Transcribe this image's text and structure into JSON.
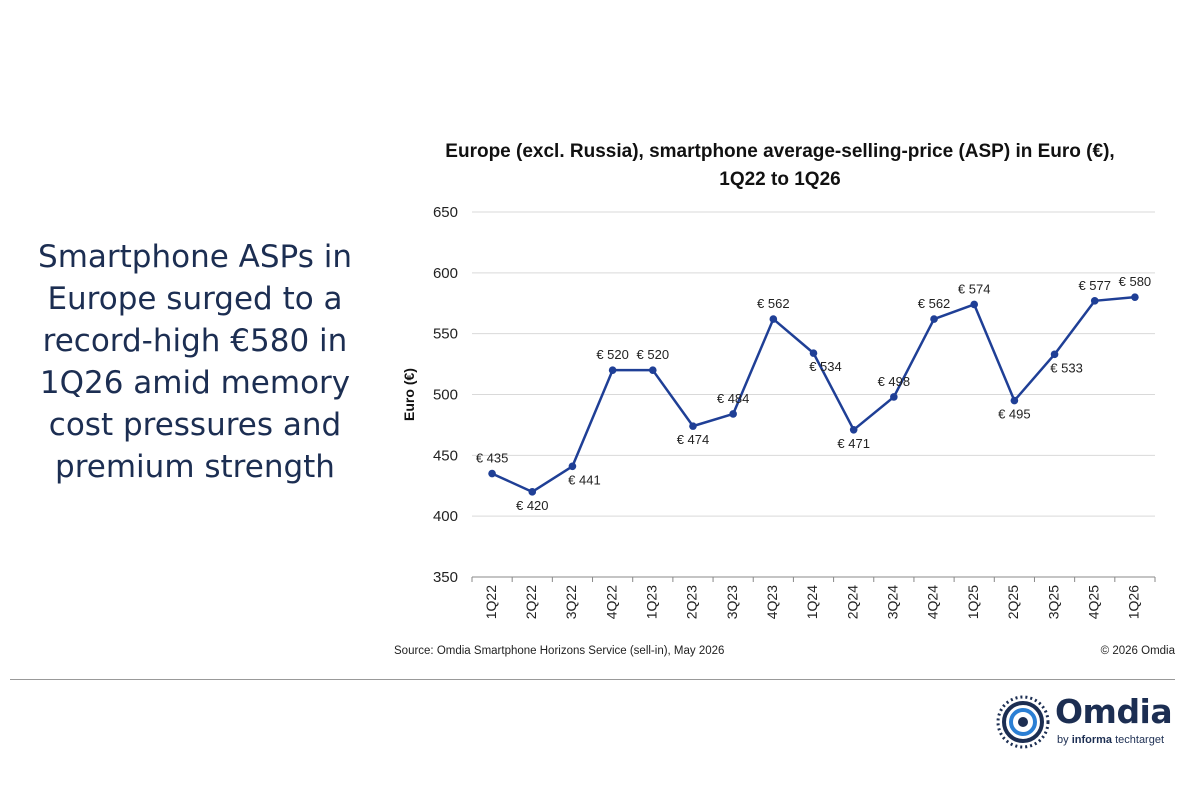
{
  "headline": "Smartphone ASPs in Europe surged to a record-high €580 in 1Q26 amid memory cost pressures and premium strength",
  "footer": {
    "source": "Source: Omdia Smartphone Horizons Service (sell-in), May 2026",
    "copyright": "© 2026 Omdia"
  },
  "logo": {
    "word": "Omdia",
    "by": "by",
    "informa": "informa",
    "techtarget": "techtarget"
  },
  "chart_data": {
    "type": "line",
    "title_line1": "Europe (excl. Russia), smartphone average-selling-price (ASP) in Euro (€),",
    "title_line2": "1Q22 to 1Q26",
    "ylabel": "Euro (€)",
    "xlabel": "",
    "ylim": [
      350,
      650
    ],
    "yticks": [
      350,
      400,
      450,
      500,
      550,
      600,
      650
    ],
    "grid": true,
    "line_color": "#1f3f96",
    "categories": [
      "1Q22",
      "2Q22",
      "3Q22",
      "4Q22",
      "1Q23",
      "2Q23",
      "3Q23",
      "4Q23",
      "1Q24",
      "2Q24",
      "3Q24",
      "4Q24",
      "1Q25",
      "2Q25",
      "3Q25",
      "4Q25",
      "1Q26"
    ],
    "values": [
      435,
      420,
      441,
      520,
      520,
      474,
      484,
      562,
      534,
      471,
      498,
      562,
      574,
      495,
      533,
      577,
      580
    ],
    "data_labels": [
      "€ 435",
      "€ 420",
      "€ 441",
      "€ 520",
      "€ 520",
      "€ 474",
      "€ 484",
      "€ 562",
      "€ 534",
      "€ 471",
      "€ 498",
      "€ 562",
      "€ 574",
      "€ 495",
      "€ 533",
      "€ 577",
      "€ 580"
    ]
  }
}
